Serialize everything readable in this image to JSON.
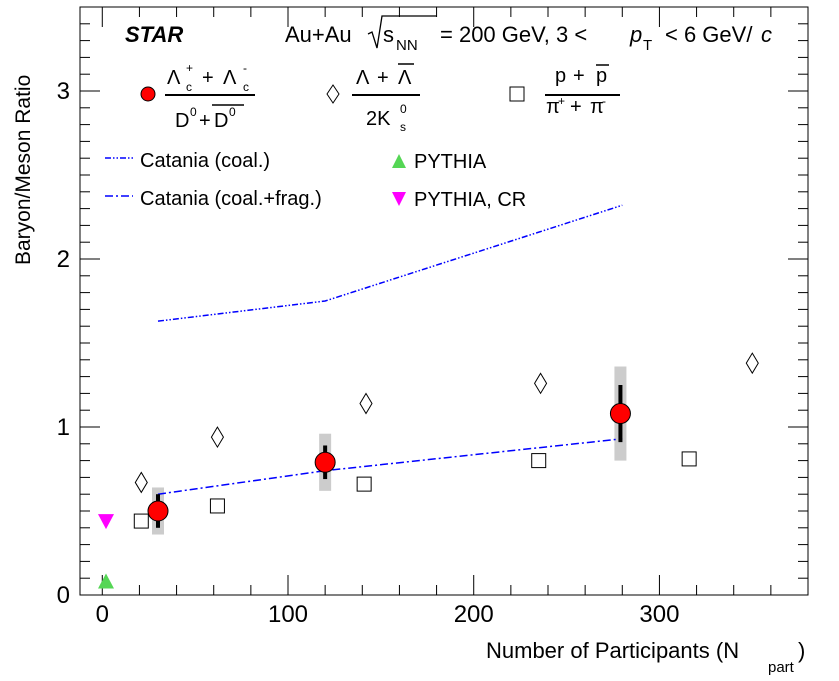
{
  "chart_data": {
    "type": "scatter",
    "experiment": "STAR",
    "system_text": "Au+Au",
    "energy_var": "s",
    "energy_sub": "NN",
    "energy_text": "= 200 GeV, 3 <",
    "pt_var": "p",
    "pt_sub": "T",
    "pt_text": "< 6 GeV/",
    "pt_unit": "c",
    "xlabel": "Number of Participants (N",
    "xlabel_sub": "part",
    "xlabel_close": ")",
    "ylabel": "Baryon/Meson Ratio",
    "xlim": [
      -12,
      380
    ],
    "ylim": [
      0,
      3.5
    ],
    "x_ticks": [
      0,
      100,
      200,
      300
    ],
    "x_tick_labels": [
      "0",
      "100",
      "200",
      "300"
    ],
    "y_ticks": [
      0,
      1,
      2,
      3
    ],
    "y_tick_labels": [
      "0",
      "1",
      "2",
      "3"
    ],
    "legend": {
      "lc": {
        "num_a": "Λ",
        "sub_a": "c",
        "sup_a": "+",
        "plus": "+",
        "num_b": "Λ",
        "sub_b": "c",
        "sup_b": "-",
        "den_a": "D",
        "sup_da": "0",
        "den_plus": "+",
        "den_b": "D",
        "sup_db": "0"
      },
      "lambda": {
        "num_a": "Λ",
        "plus": "+",
        "num_b": "Λ",
        "den": "2K",
        "den_sub": "s",
        "den_sup": "0"
      },
      "proton": {
        "num_a": "p",
        "plus": "+",
        "num_b": "p",
        "den_a": "π",
        "sup_a": "+",
        "den_plus": "+",
        "den_b": "π",
        "sup_b": "-"
      },
      "catania_coal": "Catania (coal.)",
      "catania_frag": "Catania (coal.+frag.)",
      "pythia": "PYTHIA",
      "pythia_cr": "PYTHIA, CR"
    },
    "series": [
      {
        "name": "Lambda_c / D0",
        "marker": "circle",
        "color": "#ff0000",
        "x": [
          30,
          120,
          279
        ],
        "y": [
          0.5,
          0.79,
          1.08
        ],
        "stat_err": [
          0.1,
          0.1,
          0.17
        ],
        "sys_err": [
          0.14,
          0.17,
          0.28
        ]
      },
      {
        "name": "(Lambda + anti-Lambda) / 2K0s",
        "marker": "diamond",
        "x": [
          21,
          62,
          142,
          236,
          350
        ],
        "y": [
          0.67,
          0.94,
          1.14,
          1.26,
          1.38
        ]
      },
      {
        "name": "(p + pbar) / (pi+ + pi-)",
        "marker": "square",
        "x": [
          21,
          62,
          141,
          235,
          316
        ],
        "y": [
          0.44,
          0.53,
          0.66,
          0.8,
          0.81
        ]
      },
      {
        "name": "Catania (coal.)",
        "style": "dash-dot-dot",
        "color": "#0000ff",
        "x": [
          30,
          120,
          280
        ],
        "y": [
          1.63,
          1.75,
          2.32
        ]
      },
      {
        "name": "Catania (coal.+frag.)",
        "style": "dash-dot",
        "color": "#0000ff",
        "x": [
          30,
          120,
          280
        ],
        "y": [
          0.6,
          0.74,
          0.93
        ]
      },
      {
        "name": "PYTHIA",
        "marker": "triangle-up",
        "color": "#55d655",
        "x": [
          2
        ],
        "y": [
          0.08
        ]
      },
      {
        "name": "PYTHIA, CR",
        "marker": "triangle-down",
        "color": "#ff00ff",
        "x": [
          2
        ],
        "y": [
          0.44
        ]
      }
    ]
  }
}
